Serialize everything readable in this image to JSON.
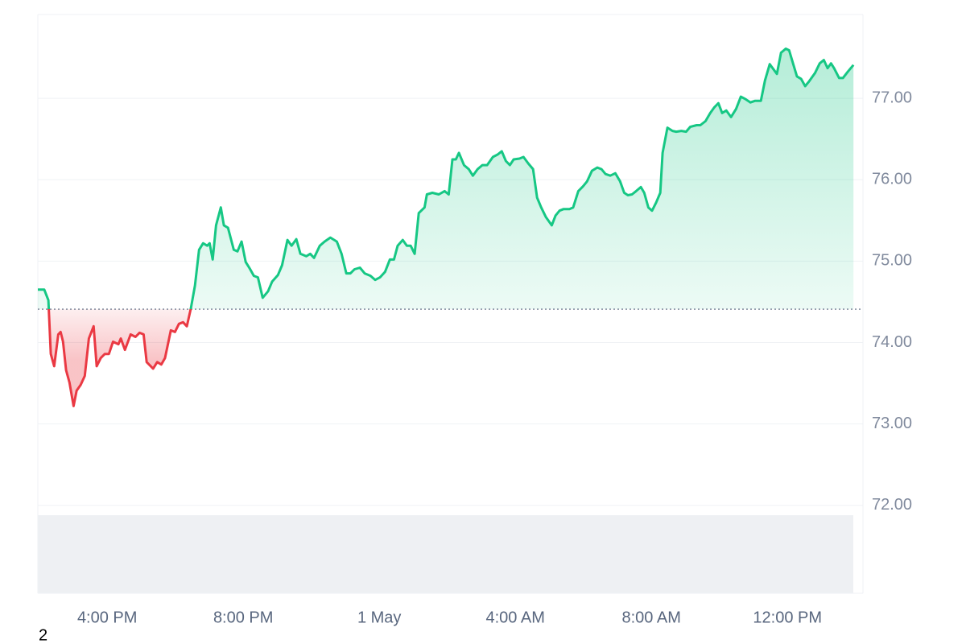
{
  "chart_data": {
    "type": "line",
    "x": [
      13.96,
      14.15,
      14.27,
      14.34,
      14.44,
      14.56,
      14.63,
      14.7,
      14.79,
      14.89,
      15.01,
      15.1,
      15.22,
      15.34,
      15.46,
      15.6,
      15.69,
      15.81,
      15.93,
      16.05,
      16.17,
      16.33,
      16.4,
      16.52,
      16.69,
      16.83,
      16.95,
      17.07,
      17.16,
      17.35,
      17.47,
      17.59,
      17.7,
      17.87,
      17.99,
      18.11,
      18.23,
      18.34,
      18.46,
      18.58,
      18.7,
      18.82,
      18.94,
      19.01,
      19.1,
      19.2,
      19.34,
      19.43,
      19.55,
      19.72,
      19.83,
      19.95,
      20.07,
      20.19,
      20.31,
      20.43,
      20.57,
      20.73,
      20.85,
      21.02,
      21.14,
      21.3,
      21.42,
      21.56,
      21.68,
      21.85,
      21.97,
      22.08,
      22.25,
      22.39,
      22.56,
      22.75,
      22.89,
      23.03,
      23.15,
      23.27,
      23.43,
      23.57,
      23.74,
      23.88,
      24.02,
      24.17,
      24.31,
      24.43,
      24.54,
      24.69,
      24.81,
      24.92,
      25.04,
      25.16,
      25.33,
      25.4,
      25.56,
      25.75,
      25.92,
      26.04,
      26.15,
      26.25,
      26.34,
      26.49,
      26.63,
      26.75,
      26.89,
      27.03,
      27.17,
      27.34,
      27.48,
      27.6,
      27.72,
      27.84,
      27.95,
      28.12,
      28.24,
      28.38,
      28.52,
      28.64,
      28.76,
      28.9,
      29.07,
      29.18,
      29.3,
      29.42,
      29.59,
      29.7,
      29.85,
      29.99,
      30.11,
      30.25,
      30.41,
      30.53,
      30.65,
      30.79,
      30.94,
      31.08,
      31.2,
      31.31,
      31.43,
      31.55,
      31.69,
      31.79,
      31.91,
      32.02,
      32.14,
      32.26,
      32.33,
      32.47,
      32.62,
      32.73,
      32.88,
      33.02,
      33.14,
      33.33,
      33.44,
      33.59,
      33.73,
      33.85,
      33.97,
      34.08,
      34.2,
      34.34,
      34.49,
      34.63,
      34.77,
      34.91,
      35.05,
      35.22,
      35.34,
      35.48,
      35.62,
      35.69,
      35.81,
      35.95,
      36.05,
      36.17,
      36.28,
      36.4,
      36.52,
      36.64,
      36.81,
      36.95,
      37.07,
      37.18,
      37.28,
      37.37,
      37.52,
      37.63,
      37.78,
      37.94
    ],
    "values": [
      74.65,
      74.65,
      74.52,
      73.86,
      73.71,
      74.1,
      74.13,
      74.01,
      73.66,
      73.51,
      73.22,
      73.41,
      73.48,
      73.59,
      74.05,
      74.2,
      73.71,
      73.81,
      73.86,
      73.86,
      74.01,
      73.98,
      74.05,
      73.91,
      74.1,
      74.07,
      74.12,
      74.1,
      73.76,
      73.68,
      73.76,
      73.73,
      73.81,
      74.15,
      74.13,
      74.23,
      74.25,
      74.2,
      74.42,
      74.7,
      75.14,
      75.22,
      75.19,
      75.22,
      75.02,
      75.44,
      75.66,
      75.44,
      75.41,
      75.14,
      75.12,
      75.24,
      74.99,
      74.91,
      74.82,
      74.8,
      74.55,
      74.63,
      74.75,
      74.83,
      74.95,
      75.26,
      75.19,
      75.27,
      75.09,
      75.06,
      75.09,
      75.04,
      75.19,
      75.24,
      75.29,
      75.24,
      75.09,
      74.85,
      74.85,
      74.9,
      74.92,
      74.85,
      74.82,
      74.77,
      74.8,
      74.87,
      75.02,
      75.02,
      75.19,
      75.26,
      75.19,
      75.19,
      75.09,
      75.59,
      75.66,
      75.82,
      75.84,
      75.82,
      75.86,
      75.82,
      76.25,
      76.25,
      76.33,
      76.18,
      76.13,
      76.05,
      76.13,
      76.18,
      76.18,
      76.28,
      76.31,
      76.35,
      76.23,
      76.18,
      76.25,
      76.26,
      76.28,
      76.2,
      76.13,
      75.78,
      75.66,
      75.54,
      75.44,
      75.56,
      75.62,
      75.64,
      75.64,
      75.66,
      75.86,
      75.92,
      75.98,
      76.11,
      76.15,
      76.13,
      76.07,
      76.05,
      76.08,
      75.98,
      75.84,
      75.81,
      75.82,
      75.86,
      75.91,
      75.84,
      75.66,
      75.62,
      75.72,
      75.84,
      76.33,
      76.64,
      76.6,
      76.59,
      76.6,
      76.59,
      76.65,
      76.67,
      76.67,
      76.72,
      76.82,
      76.89,
      76.94,
      76.82,
      76.85,
      76.77,
      76.87,
      77.02,
      76.99,
      76.95,
      76.97,
      76.97,
      77.22,
      77.42,
      77.34,
      77.3,
      77.56,
      77.61,
      77.59,
      77.42,
      77.27,
      77.24,
      77.15,
      77.21,
      77.31,
      77.43,
      77.47,
      77.37,
      77.43,
      77.37,
      77.25,
      77.25,
      77.33,
      77.41
    ],
    "baseline": 74.41,
    "up_color": "#16c784",
    "down_color": "#ea3943",
    "xlim": [
      13.96,
      38.22
    ],
    "xticks": [
      {
        "value": 16,
        "label": "4:00 PM"
      },
      {
        "value": 20,
        "label": "8:00 PM"
      },
      {
        "value": 24,
        "label": "1 May"
      },
      {
        "value": 28,
        "label": "4:00 AM"
      },
      {
        "value": 32,
        "label": "8:00 AM"
      },
      {
        "value": 36,
        "label": "12:00 PM"
      }
    ],
    "ylim": [
      70.92,
      78.03
    ],
    "yticks": [
      {
        "value": 72,
        "label": "72.00"
      },
      {
        "value": 73,
        "label": "73.00"
      },
      {
        "value": 74,
        "label": "74.00"
      },
      {
        "value": 75,
        "label": "75.00"
      },
      {
        "value": 76,
        "label": "76.00"
      },
      {
        "value": 77,
        "label": "77.00"
      }
    ],
    "grid": true,
    "logo_text": "2"
  }
}
